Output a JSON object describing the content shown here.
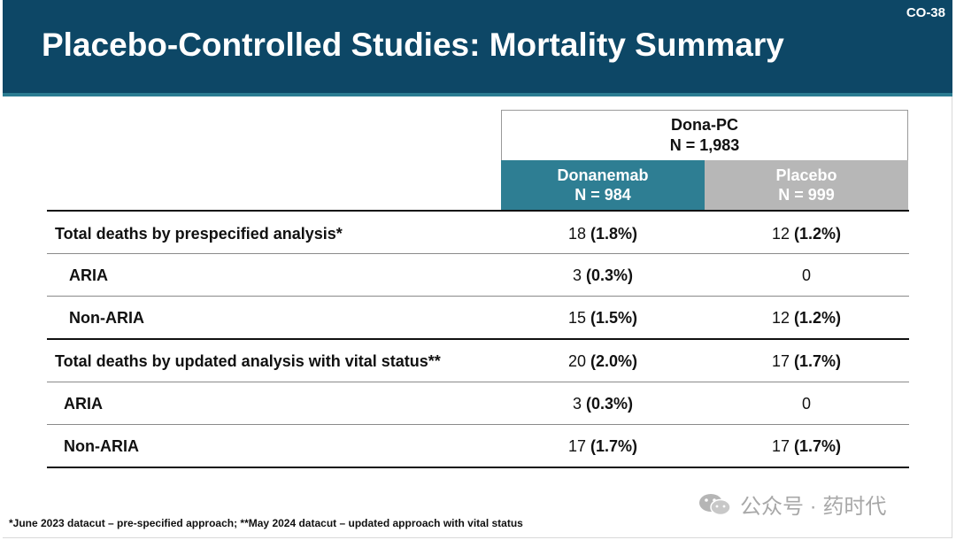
{
  "header": {
    "title": "Placebo-Controlled Studies: Mortality Summary",
    "slide_number": "CO-38"
  },
  "table": {
    "group": {
      "name": "Dona-PC",
      "n": "N = 1,983"
    },
    "arms": [
      {
        "name": "Donanemab",
        "n": "N = 984"
      },
      {
        "name": "Placebo",
        "n": "N = 999"
      }
    ],
    "rows": [
      {
        "label": "Total deaths by prespecified analysis*",
        "indent": false,
        "dona": {
          "count": "18",
          "pct": "(1.8%)"
        },
        "pbo": {
          "count": "12",
          "pct": "(1.2%)"
        }
      },
      {
        "label": "ARIA",
        "indent": true,
        "dona": {
          "count": "3",
          "pct": "(0.3%)"
        },
        "pbo": {
          "count": "0",
          "pct": ""
        }
      },
      {
        "label": "Non-ARIA",
        "indent": true,
        "dona": {
          "count": "15",
          "pct": "(1.5%)"
        },
        "pbo": {
          "count": "12",
          "pct": "(1.2%)"
        }
      },
      {
        "label": "Total deaths by updated analysis with vital status**",
        "indent": false,
        "dona": {
          "count": "20",
          "pct": "(2.0%)"
        },
        "pbo": {
          "count": "17",
          "pct": "(1.7%)"
        }
      },
      {
        "label": "ARIA",
        "indent": true,
        "dona": {
          "count": "3",
          "pct": "(0.3%)"
        },
        "pbo": {
          "count": "0",
          "pct": ""
        }
      },
      {
        "label": "Non-ARIA",
        "indent": true,
        "dona": {
          "count": "17",
          "pct": "(1.7%)"
        },
        "pbo": {
          "count": "17",
          "pct": "(1.7%)"
        }
      }
    ]
  },
  "footnote": "*June 2023 datacut – pre-specified approach; **May 2024 datacut – updated approach with vital status",
  "watermark": {
    "text": "公众号 · 药时代",
    "icon": "wechat-icon"
  },
  "colors": {
    "header": "#0d4766",
    "donanemab": "#2e7e93",
    "placebo": "#b7b7b7"
  }
}
